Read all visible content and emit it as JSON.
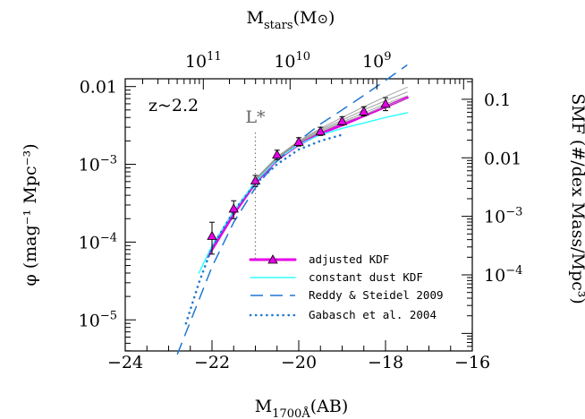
{
  "chart_data": {
    "type": "line",
    "xlabel_main": "M",
    "xlabel_sub": "1700Å",
    "xlabel_tail": "(AB)",
    "toplabel_main": "M",
    "toplabel_sub": "stars",
    "toplabel_tail": "(M",
    "toplabel_sym": "⊙",
    "toplabel_close": ")",
    "ylabel_left": "φ (mag⁻¹ Mpc⁻³)",
    "ylabel_right": "SMF (#/dex Mass/Mpc³)",
    "annotation_z": "z~2.2",
    "annotation_lstar": "L*",
    "lstar_x": -21.0,
    "xlim": [
      -24,
      -16
    ],
    "ylim_log10": [
      -5.4,
      -1.9
    ],
    "x_ticks": [
      -24,
      -22,
      -20,
      -18,
      -16
    ],
    "x_tick_labels": [
      "−24",
      "−22",
      "−20",
      "−18",
      "−16"
    ],
    "y_ticks_log10": [
      -2,
      -3,
      -4,
      -5
    ],
    "y_tick_labels": [
      {
        "base": "0.01",
        "exp": ""
      },
      {
        "base": "10",
        "exp": "−3"
      },
      {
        "base": "10",
        "exp": "−4"
      },
      {
        "base": "10",
        "exp": "−5"
      }
    ],
    "top_ticks": [
      {
        "x": -22.2,
        "base": "10",
        "exp": "11"
      },
      {
        "x": -20.15,
        "base": "10",
        "exp": "10"
      },
      {
        "x": -18.2,
        "base": "10",
        "exp": "9"
      }
    ],
    "right_ticks": [
      {
        "log10": -1,
        "base": "0.1",
        "exp": ""
      },
      {
        "log10": -2,
        "base": "0.01",
        "exp": ""
      },
      {
        "log10": -3,
        "base": "10",
        "exp": "−3"
      },
      {
        "log10": -4,
        "base": "10",
        "exp": "−4"
      }
    ],
    "right_ylim_log10": [
      -5.3,
      -0.65
    ],
    "series": [
      {
        "name": "adjusted KDF",
        "color": "#e600e6",
        "style": "solid-thick",
        "x": [
          -22.1,
          -21.5,
          -21.0,
          -20.5,
          -20.0,
          -19.5,
          -19.0,
          -18.5,
          -18.0,
          -17.5
        ],
        "y": [
          6.5e-05,
          0.00023,
          0.00058,
          0.00115,
          0.0018,
          0.0025,
          0.0032,
          0.0042,
          0.0055,
          0.0072
        ]
      },
      {
        "name": "constant dust KDF",
        "color": "#33ffff",
        "style": "solid",
        "x": [
          -22.3,
          -22.0,
          -21.5,
          -21.0,
          -20.5,
          -20.0,
          -19.5,
          -19.0,
          -18.5,
          -18.0,
          -17.5
        ],
        "y": [
          4e-05,
          9e-05,
          0.00025,
          0.0006,
          0.00115,
          0.0018,
          0.0024,
          0.0029,
          0.0034,
          0.004,
          0.0046
        ]
      },
      {
        "name": "Reddy & Steidel 2009",
        "color": "#1f77d0",
        "style": "long-dash",
        "x": [
          -22.8,
          -22.5,
          -22.0,
          -21.5,
          -21.0,
          -20.5,
          -20.0,
          -19.5,
          -19.0,
          -18.5,
          -18.0,
          -17.5
        ],
        "y": [
          3.6e-06,
          9.5e-06,
          4.8e-05,
          0.00018,
          0.0005,
          0.0011,
          0.002,
          0.0033,
          0.005,
          0.0077,
          0.012,
          0.019
        ]
      },
      {
        "name": "Gabasch et al. 2004",
        "color": "#1f77d0",
        "style": "dots",
        "x": [
          -22.6,
          -22.3,
          -22.0,
          -21.5,
          -21.0,
          -20.5,
          -20.0,
          -19.5,
          -19.0
        ],
        "y": [
          9e-06,
          3e-05,
          8.5e-05,
          0.00025,
          0.00056,
          0.001,
          0.00155,
          0.002,
          0.0024
        ]
      },
      {
        "name": "",
        "color": "#999999",
        "style": "thin",
        "x": [
          -21.0,
          -20.5,
          -20.0,
          -19.5,
          -19.0,
          -18.5,
          -18.0,
          -17.5
        ],
        "y": [
          0.00065,
          0.00125,
          0.002,
          0.0029,
          0.004,
          0.0055,
          0.0074,
          0.0098
        ]
      },
      {
        "name": "",
        "color": "#999999",
        "style": "thin",
        "x": [
          -21.0,
          -20.5,
          -20.0,
          -19.5,
          -19.0,
          -18.5,
          -18.0,
          -17.5
        ],
        "y": [
          0.00064,
          0.00122,
          0.00195,
          0.0028,
          0.0037,
          0.005,
          0.0066,
          0.0085
        ]
      },
      {
        "name": "",
        "color": "#999999",
        "style": "thin",
        "x": [
          -21.0,
          -20.5,
          -20.0,
          -19.5,
          -19.0,
          -18.5,
          -18.0,
          -17.5
        ],
        "y": [
          0.00062,
          0.0012,
          0.0019,
          0.0027,
          0.0035,
          0.0046,
          0.006,
          0.0076
        ]
      },
      {
        "name": "",
        "color": "#999999",
        "style": "thin",
        "x": [
          -21.0,
          -20.5,
          -20.0,
          -19.5,
          -19.0,
          -18.5,
          -18.0,
          -17.5
        ],
        "y": [
          0.00063,
          0.00118,
          0.0019,
          0.0026,
          0.0034,
          0.0043,
          0.0056,
          0.007
        ]
      }
    ],
    "points": {
      "name": "adjusted KDF",
      "color": "#e600e6",
      "x": [
        -22.0,
        -21.5,
        -21.0,
        -20.5,
        -20.0,
        -19.5,
        -19.0,
        -18.5,
        -18.0
      ],
      "y": [
        0.00012,
        0.00027,
        0.00062,
        0.00133,
        0.00195,
        0.00265,
        0.0036,
        0.0048,
        0.006
      ],
      "yerr_lo": [
        7e-05,
        0.0002,
        0.00052,
        0.00115,
        0.00172,
        0.00235,
        0.0032,
        0.0042,
        0.0049
      ],
      "yerr_hi": [
        0.00018,
        0.00034,
        0.00072,
        0.00152,
        0.0022,
        0.003,
        0.0041,
        0.0055,
        0.0072
      ]
    },
    "legend": [
      {
        "label": "adjusted KDF",
        "style": "solid-thick-tri",
        "color": "#e600e6"
      },
      {
        "label": "constant dust KDF",
        "style": "solid",
        "color": "#33ffff"
      },
      {
        "label": "Reddy & Steidel 2009",
        "style": "long-dash",
        "color": "#1f77d0"
      },
      {
        "label": "Gabasch et al. 2004",
        "style": "dots",
        "color": "#1f77d0"
      }
    ],
    "legend_placement": "bottom-right",
    "grid": false
  }
}
